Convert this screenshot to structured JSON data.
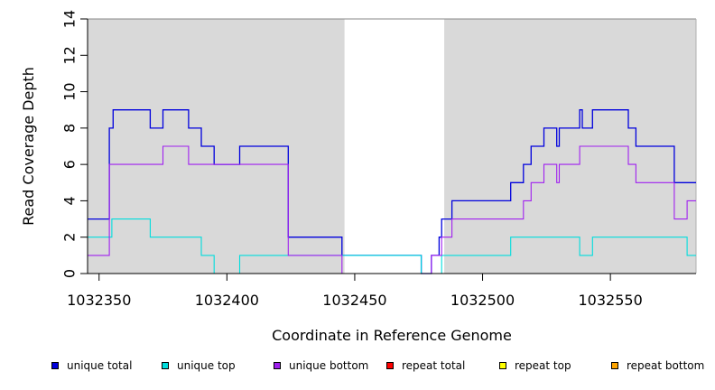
{
  "chart_data": {
    "type": "line",
    "title": "",
    "xlabel": "Coordinate in Reference Genome",
    "ylabel": "Read Coverage Depth",
    "xlim": [
      1032345.5,
      1032583.5
    ],
    "ylim": [
      0,
      14
    ],
    "x_ticks": [
      1032350,
      1032400,
      1032450,
      1032500,
      1032550
    ],
    "y_ticks": [
      0,
      2,
      4,
      6,
      8,
      10,
      12,
      14
    ],
    "grid": false,
    "background_color": "#d9d9d9",
    "unshaded_regions": [
      [
        1032446,
        1032485
      ]
    ],
    "legend_position": "bottom",
    "series": [
      {
        "name": "unique total",
        "color": "#0000dd",
        "points": [
          [
            1032345.5,
            3
          ],
          [
            1032354,
            3
          ],
          [
            1032354,
            8
          ],
          [
            1032355.5,
            8
          ],
          [
            1032355.5,
            9
          ],
          [
            1032370,
            9
          ],
          [
            1032370,
            8
          ],
          [
            1032375,
            8
          ],
          [
            1032375,
            9
          ],
          [
            1032385,
            9
          ],
          [
            1032385,
            8
          ],
          [
            1032390,
            8
          ],
          [
            1032390,
            7
          ],
          [
            1032395,
            7
          ],
          [
            1032395,
            6
          ],
          [
            1032405,
            6
          ],
          [
            1032405,
            7
          ],
          [
            1032424,
            7
          ],
          [
            1032424,
            2
          ],
          [
            1032445,
            2
          ],
          [
            1032445,
            1
          ],
          [
            1032476,
            1
          ],
          [
            1032476,
            0
          ],
          [
            1032480,
            0
          ],
          [
            1032480,
            1
          ],
          [
            1032483,
            1
          ],
          [
            1032483,
            2
          ],
          [
            1032484,
            2
          ],
          [
            1032484,
            3
          ],
          [
            1032488,
            3
          ],
          [
            1032488,
            4
          ],
          [
            1032511,
            4
          ],
          [
            1032511,
            5
          ],
          [
            1032516,
            5
          ],
          [
            1032516,
            6
          ],
          [
            1032519,
            6
          ],
          [
            1032519,
            7
          ],
          [
            1032524,
            7
          ],
          [
            1032524,
            8
          ],
          [
            1032529,
            8
          ],
          [
            1032529,
            7
          ],
          [
            1032530,
            7
          ],
          [
            1032530,
            8
          ],
          [
            1032538,
            8
          ],
          [
            1032538,
            9
          ],
          [
            1032539,
            9
          ],
          [
            1032539,
            8
          ],
          [
            1032543,
            8
          ],
          [
            1032543,
            9
          ],
          [
            1032557,
            9
          ],
          [
            1032557,
            8
          ],
          [
            1032560,
            8
          ],
          [
            1032560,
            7
          ],
          [
            1032575,
            7
          ],
          [
            1032575,
            5
          ],
          [
            1032583.5,
            5
          ]
        ]
      },
      {
        "name": "unique top",
        "color": "#00dddd",
        "points": [
          [
            1032345.5,
            2
          ],
          [
            1032355,
            2
          ],
          [
            1032355,
            3
          ],
          [
            1032370,
            3
          ],
          [
            1032370,
            2
          ],
          [
            1032390,
            2
          ],
          [
            1032390,
            1
          ],
          [
            1032395,
            1
          ],
          [
            1032395,
            0
          ],
          [
            1032405,
            0
          ],
          [
            1032405,
            1
          ],
          [
            1032476,
            1
          ],
          [
            1032476,
            0
          ],
          [
            1032484,
            0
          ],
          [
            1032484,
            1
          ],
          [
            1032511,
            1
          ],
          [
            1032511,
            2
          ],
          [
            1032538,
            2
          ],
          [
            1032538,
            1
          ],
          [
            1032543,
            1
          ],
          [
            1032543,
            2
          ],
          [
            1032580,
            2
          ],
          [
            1032580,
            1
          ],
          [
            1032583.5,
            1
          ]
        ]
      },
      {
        "name": "unique bottom",
        "color": "#a020f0",
        "points": [
          [
            1032345.5,
            1
          ],
          [
            1032354,
            1
          ],
          [
            1032354,
            6
          ],
          [
            1032375,
            6
          ],
          [
            1032375,
            7
          ],
          [
            1032385,
            7
          ],
          [
            1032385,
            6
          ],
          [
            1032424,
            6
          ],
          [
            1032424,
            1
          ],
          [
            1032445,
            1
          ],
          [
            1032445,
            0
          ],
          [
            1032480,
            0
          ],
          [
            1032480,
            1
          ],
          [
            1032484,
            1
          ],
          [
            1032484,
            2
          ],
          [
            1032488,
            2
          ],
          [
            1032488,
            3
          ],
          [
            1032516,
            3
          ],
          [
            1032516,
            4
          ],
          [
            1032519,
            4
          ],
          [
            1032519,
            5
          ],
          [
            1032524,
            5
          ],
          [
            1032524,
            6
          ],
          [
            1032529,
            6
          ],
          [
            1032529,
            5
          ],
          [
            1032530,
            5
          ],
          [
            1032530,
            6
          ],
          [
            1032538,
            6
          ],
          [
            1032538,
            7
          ],
          [
            1032557,
            7
          ],
          [
            1032557,
            6
          ],
          [
            1032560,
            6
          ],
          [
            1032560,
            5
          ],
          [
            1032575,
            5
          ],
          [
            1032575,
            3
          ],
          [
            1032580,
            3
          ],
          [
            1032580,
            4
          ],
          [
            1032583.5,
            4
          ]
        ]
      },
      {
        "name": "repeat total",
        "color": "#ff0000",
        "points": [
          [
            1032345.5,
            0
          ],
          [
            1032583.5,
            0
          ]
        ]
      },
      {
        "name": "repeat top",
        "color": "#ffff00",
        "points": [
          [
            1032345.5,
            0
          ],
          [
            1032583.5,
            0
          ]
        ]
      },
      {
        "name": "repeat bottom",
        "color": "#ffa500",
        "points": [
          [
            1032345.5,
            0
          ],
          [
            1032583.5,
            0
          ]
        ]
      }
    ]
  }
}
